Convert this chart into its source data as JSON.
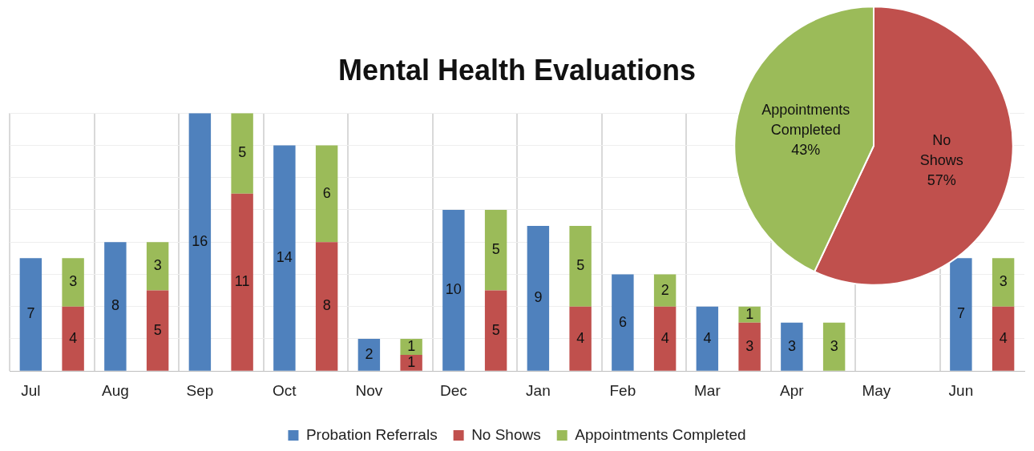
{
  "chart_data": [
    {
      "type": "bar",
      "title": "Mental Health Evaluations",
      "categories": [
        "Jul",
        null,
        "Aug",
        null,
        "Sep",
        null,
        "Oct",
        null,
        "Nov",
        null,
        "Dec",
        null,
        "Jan",
        null,
        "Feb",
        null,
        "Mar",
        null,
        "Apr",
        null,
        "May",
        null,
        "Jun",
        null
      ],
      "stacked": true,
      "series": [
        {
          "name": "Probation Referrals",
          "color": "#4f81bd",
          "values": [
            7,
            null,
            8,
            null,
            16,
            null,
            14,
            null,
            2,
            null,
            10,
            null,
            9,
            null,
            6,
            null,
            4,
            null,
            3,
            null,
            null,
            null,
            7,
            null
          ]
        },
        {
          "name": "No Shows",
          "color": "#c0504d",
          "values": [
            null,
            4,
            null,
            5,
            null,
            11,
            null,
            8,
            null,
            1,
            null,
            5,
            null,
            4,
            null,
            4,
            null,
            3,
            null,
            null,
            null,
            null,
            null,
            4
          ]
        },
        {
          "name": "Appointments Completed",
          "color": "#9bbb59",
          "values": [
            null,
            3,
            null,
            3,
            null,
            5,
            null,
            6,
            null,
            1,
            null,
            5,
            null,
            5,
            null,
            2,
            null,
            1,
            null,
            3,
            null,
            null,
            null,
            3
          ]
        }
      ],
      "data_labels": true,
      "grid": true,
      "legend": "bottom"
    },
    {
      "type": "pie",
      "categories": [
        "No Shows",
        "Appointments Completed"
      ],
      "values": [
        57,
        43
      ],
      "colors": [
        "#c0504d",
        "#9bbb59"
      ],
      "value_labels": [
        "57%",
        "43%"
      ],
      "legend": false
    }
  ]
}
